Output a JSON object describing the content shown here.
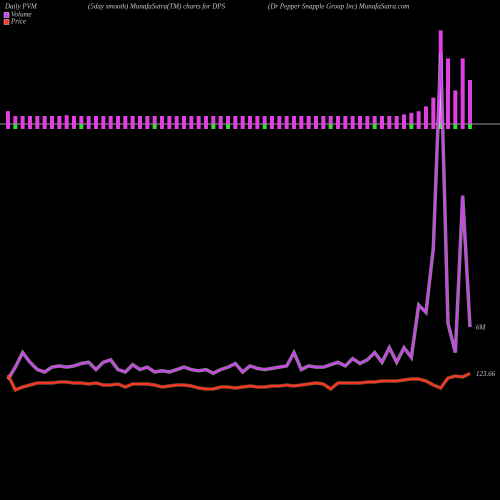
{
  "chart_data": {
    "type": "pvm",
    "title": "Daily PVM",
    "subtitle": "(5day smooth) MunafaSutra(TM) charts for DPS",
    "company": "(Dr Pepper Snapple  Group Inc) MunafaSutra.com",
    "background": "#000000",
    "bars": {
      "values": [
        1.6,
        1.0,
        1.0,
        1.0,
        1.0,
        1.0,
        1.0,
        1.0,
        1.1,
        1.0,
        1.0,
        1.0,
        1.0,
        1.0,
        1.0,
        1.0,
        1.0,
        1.0,
        1.0,
        1.0,
        1.0,
        1.0,
        1.0,
        1.0,
        1.0,
        1.0,
        1.0,
        1.0,
        1.0,
        1.0,
        1.0,
        1.0,
        1.0,
        1.0,
        1.0,
        1.0,
        1.0,
        1.0,
        1.0,
        1.0,
        1.0,
        1.0,
        1.0,
        1.0,
        1.0,
        1.0,
        1.0,
        1.0,
        1.0,
        1.0,
        1.0,
        1.0,
        1.0,
        1.0,
        1.2,
        1.4,
        1.6,
        2.2,
        3.3,
        11.7,
        8.2,
        4.2,
        8.2,
        5.5
      ],
      "colors": [
        "#e040e0",
        "#33dd33",
        "#e040e0",
        "#e040e0",
        "#e040e0",
        "#e040e0",
        "#e040e0",
        "#e040e0",
        "#e040e0",
        "#e040e0",
        "#33dd33",
        "#e040e0",
        "#e040e0",
        "#e040e0",
        "#e040e0",
        "#e040e0",
        "#e040e0",
        "#e040e0",
        "#e040e0",
        "#e040e0",
        "#33dd33",
        "#e040e0",
        "#e040e0",
        "#e040e0",
        "#e040e0",
        "#e040e0",
        "#e040e0",
        "#e040e0",
        "#33dd33",
        "#e040e0",
        "#33dd33",
        "#e040e0",
        "#e040e0",
        "#e040e0",
        "#e040e0",
        "#33dd33",
        "#e040e0",
        "#e040e0",
        "#e040e0",
        "#e040e0",
        "#e040e0",
        "#e040e0",
        "#e040e0",
        "#e040e0",
        "#33dd33",
        "#e040e0",
        "#e040e0",
        "#e040e0",
        "#e040e0",
        "#e040e0",
        "#33dd33",
        "#e040e0",
        "#e040e0",
        "#e040e0",
        "#e040e0",
        "#33dd33",
        "#e040e0",
        "#e040e0",
        "#e040e0",
        "#33dd33",
        "#e040e0",
        "#33dd33",
        "#e040e0",
        "#33dd33"
      ]
    },
    "series": [
      {
        "name": "Volume",
        "color": "#cc44ee",
        "ylim": [
          0,
          30
        ],
        "values": [
          1.7,
          2.7,
          3.9,
          3.1,
          2.5,
          2.3,
          2.7,
          2.8,
          2.7,
          2.8,
          3.0,
          3.1,
          2.5,
          3.1,
          3.3,
          2.5,
          2.3,
          2.9,
          2.5,
          2.7,
          2.3,
          2.4,
          2.3,
          2.5,
          2.7,
          2.5,
          2.4,
          2.5,
          2.2,
          2.5,
          2.7,
          3.0,
          2.3,
          2.8,
          2.6,
          2.5,
          2.6,
          2.7,
          2.8,
          3.9,
          2.5,
          2.8,
          2.7,
          2.7,
          2.9,
          3.1,
          2.8,
          3.4,
          3.0,
          3.3,
          3.9,
          3.1,
          4.3,
          3.1,
          4.3,
          3.5,
          7.8,
          7.2,
          12.5,
          28.5,
          6.3,
          3.9,
          16.8,
          6
        ],
        "value_labels": [
          null,
          null,
          null,
          null,
          null,
          null,
          null,
          null,
          null,
          null,
          null,
          null,
          null,
          null,
          null,
          null,
          null,
          null,
          null,
          null,
          null,
          null,
          null,
          null,
          null,
          null,
          null,
          null,
          null,
          null,
          null,
          null,
          null,
          null,
          null,
          null,
          null,
          null,
          null,
          null,
          null,
          null,
          null,
          null,
          null,
          null,
          null,
          null,
          null,
          null,
          null,
          null,
          null,
          null,
          null,
          null,
          null,
          null,
          null,
          null,
          null,
          null,
          null,
          "6M"
        ]
      },
      {
        "name": "Price",
        "color": "#ff3322",
        "ylim": [
          119,
          127
        ],
        "values": [
          123.5,
          122.0,
          122.3,
          122.5,
          122.7,
          122.7,
          122.7,
          122.8,
          122.8,
          122.7,
          122.7,
          122.6,
          122.7,
          122.5,
          122.5,
          122.6,
          122.3,
          122.6,
          122.6,
          122.6,
          122.5,
          122.3,
          122.4,
          122.5,
          122.5,
          122.4,
          122.2,
          122.1,
          122.1,
          122.3,
          122.3,
          122.2,
          122.3,
          122.4,
          122.3,
          122.3,
          122.4,
          122.4,
          122.5,
          122.4,
          122.5,
          122.6,
          122.7,
          122.6,
          122.1,
          122.7,
          122.7,
          122.7,
          122.7,
          122.8,
          122.8,
          122.9,
          122.9,
          122.9,
          123.0,
          123.1,
          123.1,
          122.9,
          122.5,
          122.2,
          123.2,
          123.4,
          123.3,
          123.66
        ],
        "value_labels": [
          null,
          null,
          null,
          null,
          null,
          null,
          null,
          null,
          null,
          null,
          null,
          null,
          null,
          null,
          null,
          null,
          null,
          null,
          null,
          null,
          null,
          null,
          null,
          null,
          null,
          null,
          null,
          null,
          null,
          null,
          null,
          null,
          null,
          null,
          null,
          null,
          null,
          null,
          null,
          null,
          null,
          null,
          null,
          null,
          null,
          null,
          null,
          null,
          null,
          null,
          null,
          null,
          null,
          null,
          null,
          null,
          null,
          null,
          null,
          null,
          null,
          null,
          null,
          "123.66"
        ]
      }
    ]
  }
}
